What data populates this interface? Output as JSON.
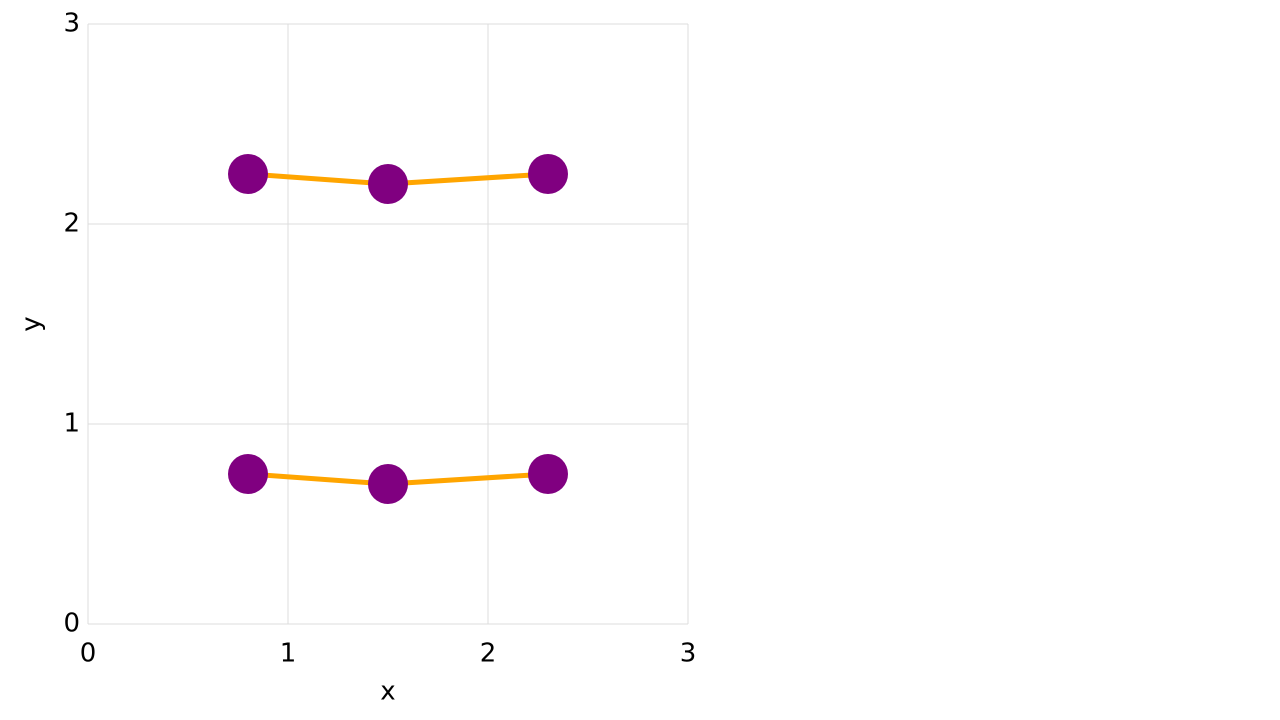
{
  "chart_data": {
    "type": "line",
    "x_label": "x",
    "y_label": "y",
    "xlim": [
      0,
      3
    ],
    "ylim": [
      0,
      3
    ],
    "xticks": [
      0,
      1,
      2,
      3
    ],
    "yticks": [
      0,
      1,
      2,
      3
    ],
    "grid": true,
    "series": [
      {
        "color": "#ffa500",
        "marker_color": "#800080",
        "x": [
          0.8,
          1.5,
          2.3
        ],
        "values": [
          2.25,
          2.2,
          2.25
        ]
      },
      {
        "color": "#ffa500",
        "marker_color": "#800080",
        "x": [
          0.8,
          1.5,
          2.3
        ],
        "values": [
          0.75,
          0.7,
          0.75
        ]
      }
    ]
  }
}
